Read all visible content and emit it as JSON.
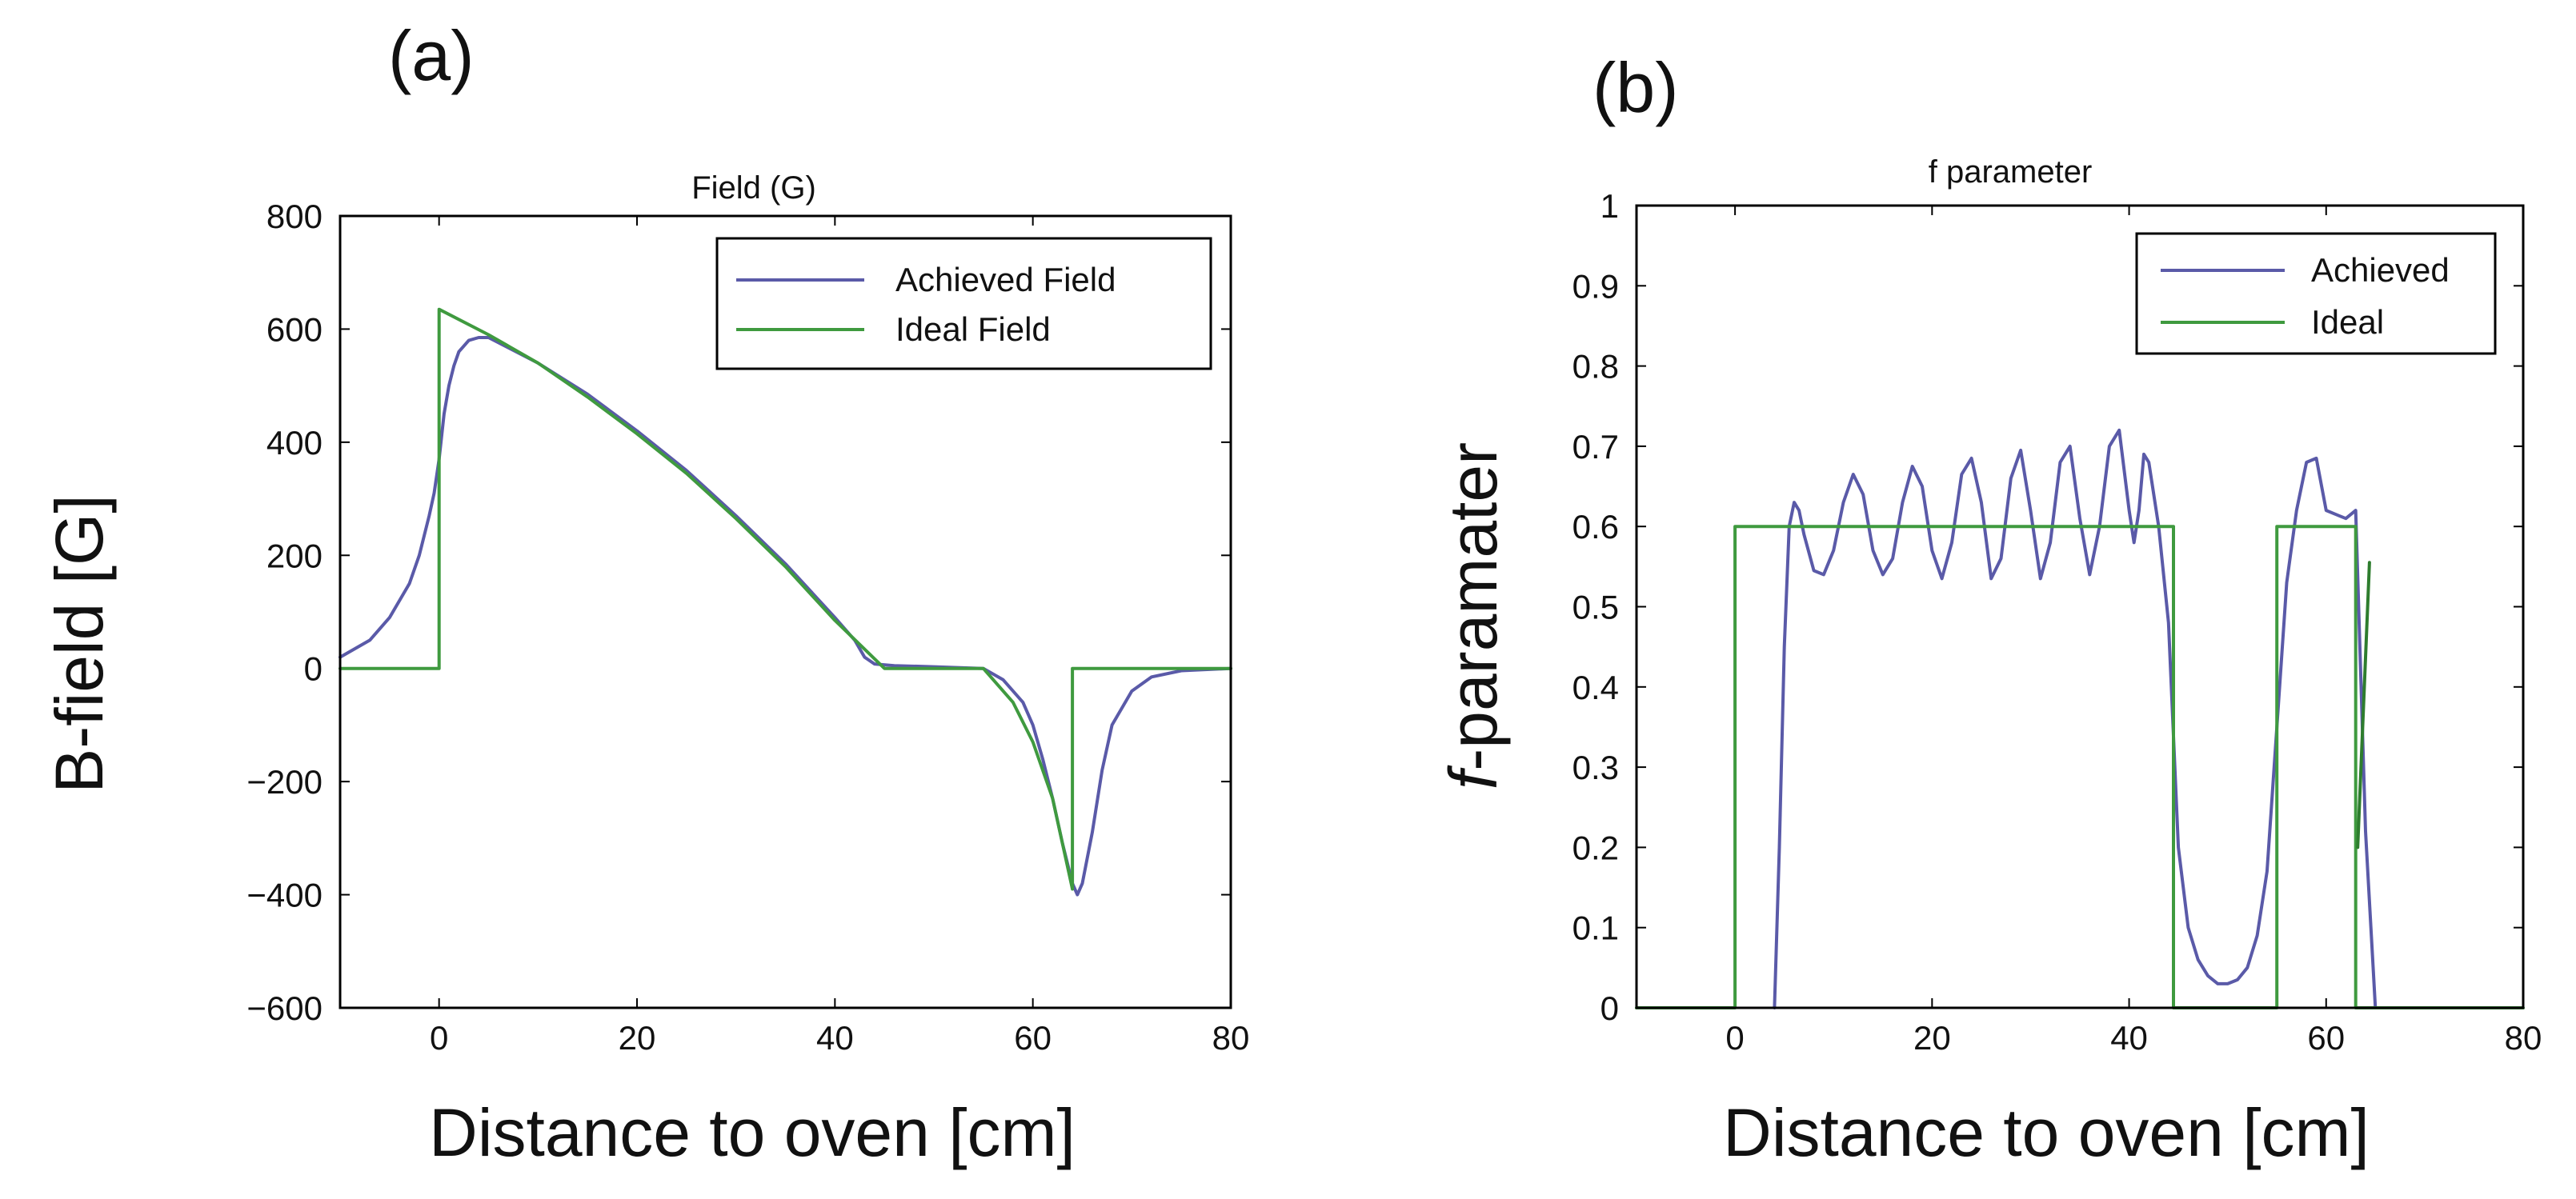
{
  "chart_data": [
    {
      "panel_label": "(a)",
      "type": "line",
      "title": "Field (G)",
      "xlabel": "Distance to oven [cm]",
      "ylabel": "B-field [G]",
      "ylabel_italic_prefix": "",
      "xlim": [
        -10,
        80
      ],
      "ylim": [
        -600,
        800
      ],
      "xticks": [
        0,
        20,
        40,
        60,
        80
      ],
      "yticks": [
        -600,
        -400,
        -200,
        0,
        200,
        400,
        600,
        800
      ],
      "ytick_labels": [
        "−600",
        "−400",
        "−200",
        "0",
        "200",
        "400",
        "600",
        "800"
      ],
      "grid": false,
      "legend_position": "top-right",
      "series": [
        {
          "name": "Achieved Field",
          "color": "#5a5aa8",
          "x": [
            -10,
            -7,
            -5,
            -3,
            -2,
            -1,
            -0.5,
            0,
            0.5,
            1,
            1.5,
            2,
            3,
            4,
            5,
            10,
            15,
            20,
            25,
            30,
            35,
            40,
            42,
            43,
            44,
            46,
            50,
            55,
            57,
            59,
            60,
            61,
            62,
            63,
            64,
            64.5,
            65,
            66,
            67,
            68,
            70,
            72,
            75,
            80
          ],
          "y": [
            20,
            50,
            90,
            150,
            200,
            270,
            310,
            370,
            450,
            500,
            535,
            560,
            580,
            585,
            585,
            540,
            485,
            420,
            350,
            270,
            185,
            90,
            50,
            20,
            8,
            5,
            3,
            0,
            -20,
            -60,
            -100,
            -160,
            -230,
            -310,
            -380,
            -400,
            -380,
            -290,
            -180,
            -100,
            -40,
            -15,
            -4,
            0
          ]
        },
        {
          "name": "Ideal Field",
          "color": "#3f9a3f",
          "x": [
            -10,
            0,
            0,
            5,
            10,
            15,
            20,
            25,
            30,
            35,
            40,
            45,
            55,
            58,
            60,
            62,
            64,
            64,
            70,
            80
          ],
          "y": [
            0,
            0,
            635,
            590,
            540,
            480,
            415,
            345,
            265,
            180,
            85,
            0,
            0,
            -60,
            -130,
            -230,
            -390,
            0,
            0,
            0
          ]
        }
      ]
    },
    {
      "panel_label": "(b)",
      "type": "line",
      "title": "f parameter",
      "xlabel": "Distance to oven [cm]",
      "ylabel": "-paramater",
      "ylabel_italic_prefix": "f",
      "xlim": [
        -10,
        80
      ],
      "ylim": [
        0,
        1
      ],
      "xticks": [
        0,
        20,
        40,
        60,
        80
      ],
      "yticks": [
        0,
        0.1,
        0.2,
        0.3,
        0.4,
        0.5,
        0.6,
        0.7,
        0.8,
        0.9,
        1
      ],
      "ytick_labels": [
        "0",
        "0.1",
        "0.2",
        "0.3",
        "0.4",
        "0.5",
        "0.6",
        "0.7",
        "0.8",
        "0.9",
        "1"
      ],
      "grid": false,
      "legend_position": "top-right",
      "series": [
        {
          "name": "Achieved",
          "color": "#5a5aa8",
          "x": [
            4,
            4.5,
            5,
            5.5,
            6,
            6.5,
            7,
            8,
            9,
            10,
            11,
            12,
            13,
            14,
            15,
            16,
            17,
            18,
            19,
            20,
            21,
            22,
            23,
            24,
            25,
            26,
            27,
            28,
            29,
            30,
            31,
            32,
            33,
            34,
            35,
            36,
            37,
            38,
            39,
            40,
            40.5,
            41,
            41.5,
            42,
            43,
            44,
            45,
            46,
            47,
            48,
            49,
            50,
            51,
            52,
            53,
            54,
            55,
            56,
            57,
            58,
            59,
            60,
            61,
            62,
            63,
            64,
            65
          ],
          "y": [
            0,
            0.2,
            0.45,
            0.6,
            0.63,
            0.62,
            0.59,
            0.545,
            0.54,
            0.57,
            0.63,
            0.665,
            0.64,
            0.57,
            0.54,
            0.56,
            0.63,
            0.675,
            0.65,
            0.57,
            0.535,
            0.58,
            0.665,
            0.685,
            0.63,
            0.535,
            0.56,
            0.66,
            0.695,
            0.62,
            0.535,
            0.58,
            0.68,
            0.7,
            0.61,
            0.54,
            0.6,
            0.7,
            0.72,
            0.62,
            0.58,
            0.62,
            0.69,
            0.68,
            0.6,
            0.48,
            0.2,
            0.1,
            0.06,
            0.04,
            0.03,
            0.03,
            0.035,
            0.05,
            0.09,
            0.17,
            0.35,
            0.53,
            0.62,
            0.68,
            0.685,
            0.62,
            0.615,
            0.61,
            0.62,
            0.22,
            0
          ]
        },
        {
          "name": "Ideal",
          "color": "#3f9a3f",
          "x": [
            -10,
            0,
            0,
            44.5,
            44.5,
            55,
            55,
            63,
            63,
            80
          ],
          "y": [
            0,
            0,
            0.6,
            0.6,
            0,
            0,
            0.6,
            0.6,
            0,
            0
          ]
        },
        {
          "name": "Ideal (tail)",
          "color": "#2e7d2e",
          "show_in_legend": false,
          "x": [
            63.2,
            64.4
          ],
          "y": [
            0.2,
            0.555
          ]
        }
      ]
    }
  ]
}
